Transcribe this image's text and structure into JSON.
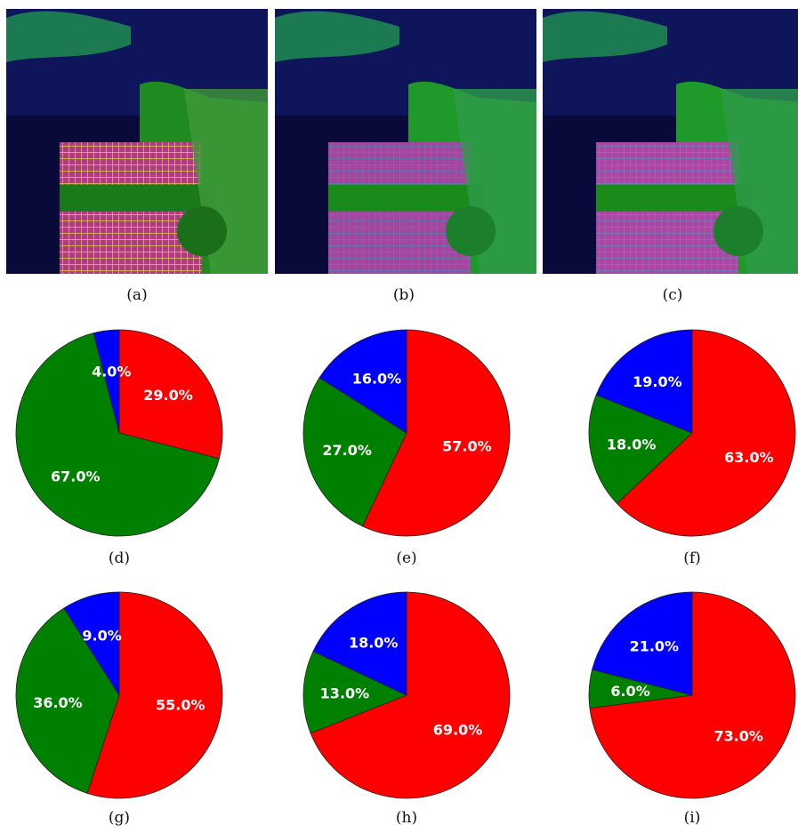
{
  "images": [
    {
      "caption": "(a)"
    },
    {
      "caption": "(b)"
    },
    {
      "caption": "(c)"
    }
  ],
  "colors": {
    "red": "#ff0000",
    "green": "#008000",
    "blue": "#0000ff"
  },
  "chart_data": [
    {
      "type": "pie",
      "caption": "(d)",
      "categories": [
        "red",
        "green",
        "blue"
      ],
      "values": [
        29.0,
        67.0,
        4.0
      ],
      "labels": [
        "29.0%",
        "67.0%",
        "4.0%"
      ]
    },
    {
      "type": "pie",
      "caption": "(e)",
      "categories": [
        "red",
        "green",
        "blue"
      ],
      "values": [
        57.0,
        27.0,
        16.0
      ],
      "labels": [
        "57.0%",
        "27.0%",
        "16.0%"
      ]
    },
    {
      "type": "pie",
      "caption": "(f)",
      "categories": [
        "red",
        "green",
        "blue"
      ],
      "values": [
        63.0,
        18.0,
        19.0
      ],
      "labels": [
        "63.0%",
        "18.0%",
        "19.0%"
      ]
    },
    {
      "type": "pie",
      "caption": "(g)",
      "categories": [
        "red",
        "green",
        "blue"
      ],
      "values": [
        55.0,
        36.0,
        9.0
      ],
      "labels": [
        "55.0%",
        "36.0%",
        "9.0%"
      ]
    },
    {
      "type": "pie",
      "caption": "(h)",
      "categories": [
        "red",
        "green",
        "blue"
      ],
      "values": [
        69.0,
        13.0,
        18.0
      ],
      "labels": [
        "69.0%",
        "13.0%",
        "18.0%"
      ]
    },
    {
      "type": "pie",
      "caption": "(i)",
      "categories": [
        "red",
        "green",
        "blue"
      ],
      "values": [
        73.0,
        6.0,
        21.0
      ],
      "labels": [
        "73.0%",
        "6.0%",
        "21.0%"
      ]
    }
  ]
}
